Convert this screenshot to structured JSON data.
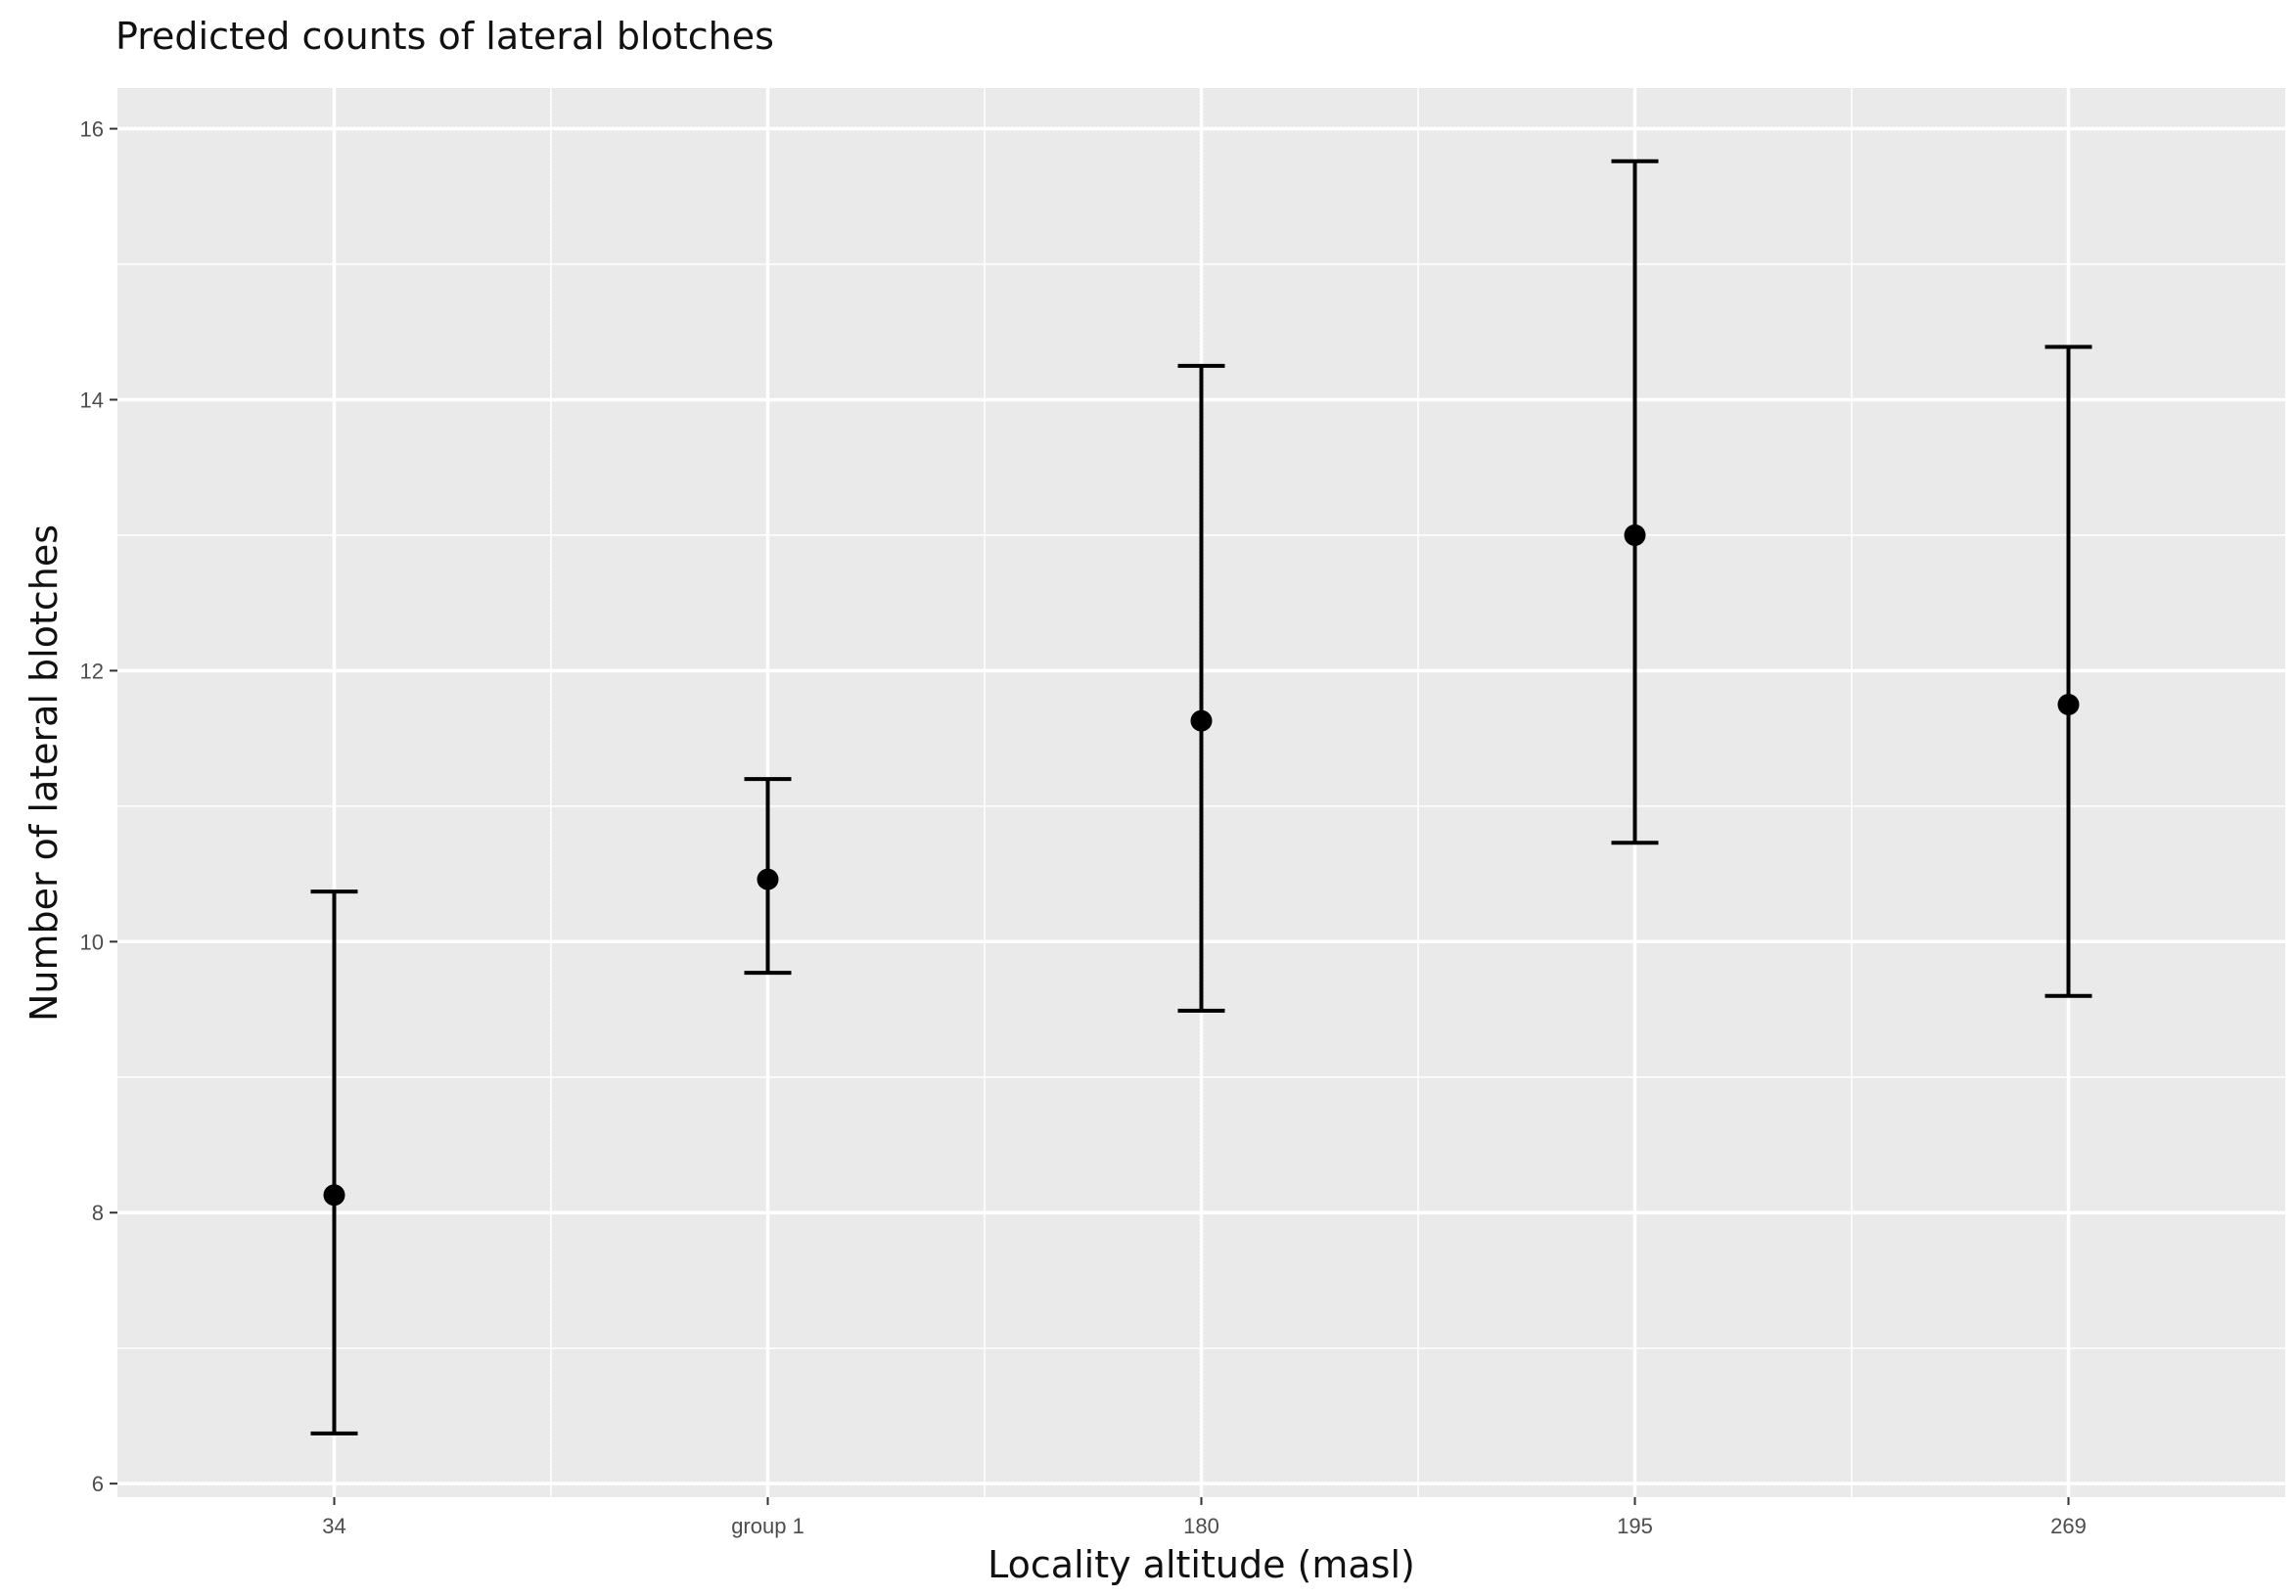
{
  "chart_data": {
    "type": "scatter",
    "title": "Predicted counts of lateral blotches",
    "xlabel": "Locality altitude (masl)",
    "ylabel": "Number of lateral blotches",
    "categories": [
      "34",
      "group 1",
      "180",
      "195",
      "269"
    ],
    "values": [
      8.13,
      10.46,
      11.63,
      13.0,
      11.75
    ],
    "error_low": [
      6.37,
      9.77,
      9.49,
      10.73,
      9.6
    ],
    "error_high": [
      10.37,
      11.2,
      14.25,
      15.76,
      14.39
    ],
    "ylim": [
      5.9,
      16.3
    ],
    "yticks": [
      6,
      8,
      10,
      12,
      14,
      16
    ],
    "grid": true,
    "colors": {
      "panel_background": "#ebebeb",
      "grid": "#ffffff",
      "marks": "#000000"
    }
  }
}
